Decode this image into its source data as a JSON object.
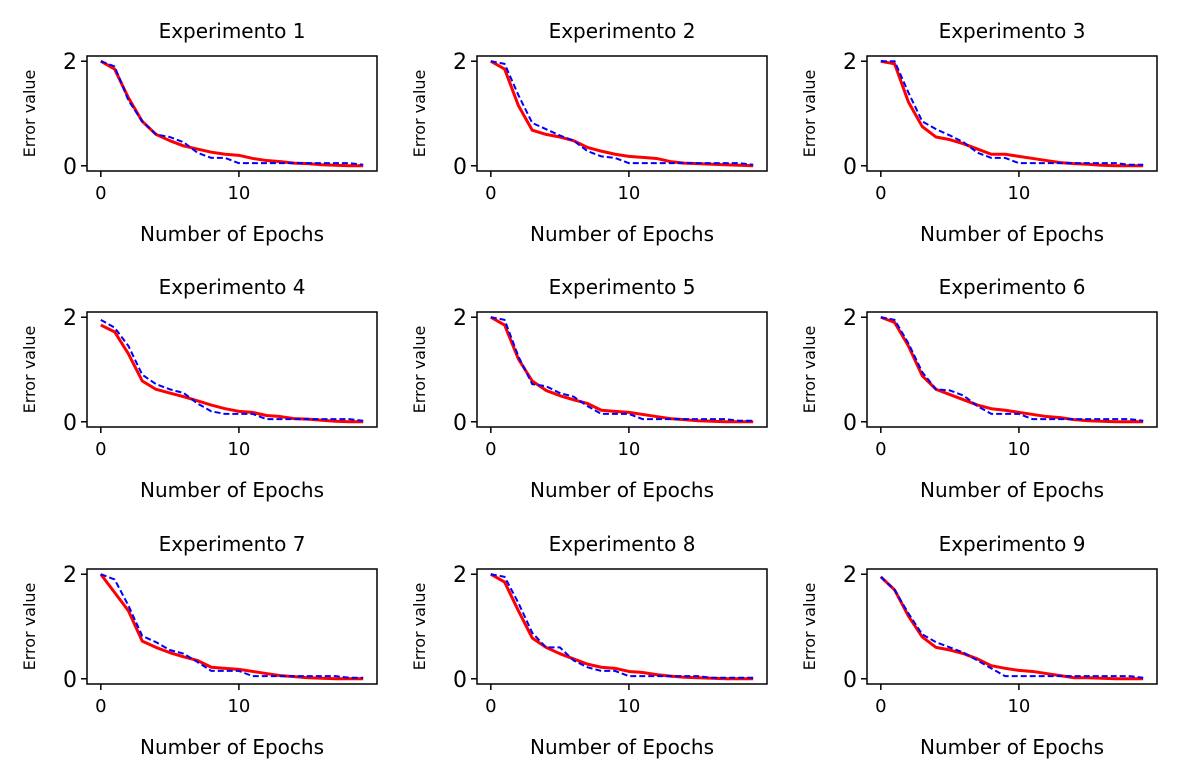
{
  "chart_data": [
    {
      "type": "line",
      "title": "Experimento 1",
      "xlabel": "Number of Epochs",
      "ylabel": "Error value",
      "xlim": [
        -1.0,
        20.0
      ],
      "ylim": [
        -0.1,
        2.1
      ],
      "xticks": [
        0,
        10
      ],
      "yticks": [
        0,
        2
      ],
      "series": [
        {
          "color": "#ff0000",
          "style": "solid",
          "x": [
            0,
            1,
            2,
            3,
            4,
            5,
            6,
            7,
            8,
            9,
            10,
            11,
            12,
            13,
            14,
            15,
            16,
            17,
            18,
            19
          ],
          "y": [
            2.0,
            1.85,
            1.3,
            0.85,
            0.6,
            0.48,
            0.38,
            0.32,
            0.26,
            0.22,
            0.2,
            0.14,
            0.1,
            0.08,
            0.05,
            0.04,
            0.02,
            0.01,
            0.0,
            0.0
          ]
        },
        {
          "color": "#0000ff",
          "style": "dashed",
          "x": [
            0,
            1,
            2,
            3,
            4,
            5,
            6,
            7,
            8,
            9,
            10,
            11,
            12,
            13,
            14,
            15,
            16,
            17,
            18,
            19
          ],
          "y": [
            2.0,
            1.9,
            1.25,
            0.85,
            0.6,
            0.55,
            0.45,
            0.25,
            0.15,
            0.15,
            0.05,
            0.05,
            0.05,
            0.05,
            0.05,
            0.05,
            0.05,
            0.05,
            0.05,
            0.02
          ]
        }
      ]
    },
    {
      "type": "line",
      "title": "Experimento 2",
      "xlabel": "Number of Epochs",
      "ylabel": "Error value",
      "xlim": [
        -1.0,
        20.0
      ],
      "ylim": [
        -0.1,
        2.1
      ],
      "xticks": [
        0,
        10
      ],
      "yticks": [
        0,
        2
      ],
      "series": [
        {
          "color": "#ff0000",
          "style": "solid",
          "x": [
            0,
            1,
            2,
            3,
            4,
            5,
            6,
            7,
            8,
            9,
            10,
            11,
            12,
            13,
            14,
            15,
            16,
            17,
            18,
            19
          ],
          "y": [
            2.0,
            1.85,
            1.15,
            0.68,
            0.6,
            0.55,
            0.48,
            0.35,
            0.28,
            0.22,
            0.18,
            0.16,
            0.14,
            0.08,
            0.05,
            0.04,
            0.03,
            0.02,
            0.01,
            0.0
          ]
        },
        {
          "color": "#0000ff",
          "style": "dashed",
          "x": [
            0,
            1,
            2,
            3,
            4,
            5,
            6,
            7,
            8,
            9,
            10,
            11,
            12,
            13,
            14,
            15,
            16,
            17,
            18,
            19
          ],
          "y": [
            2.0,
            1.95,
            1.35,
            0.82,
            0.7,
            0.58,
            0.48,
            0.28,
            0.18,
            0.15,
            0.05,
            0.05,
            0.05,
            0.05,
            0.05,
            0.05,
            0.05,
            0.05,
            0.05,
            0.02
          ]
        }
      ]
    },
    {
      "type": "line",
      "title": "Experimento 3",
      "xlabel": "Number of Epochs",
      "ylabel": "Error value",
      "xlim": [
        -1.0,
        20.0
      ],
      "ylim": [
        -0.1,
        2.1
      ],
      "xticks": [
        0,
        10
      ],
      "yticks": [
        0,
        2
      ],
      "series": [
        {
          "color": "#ff0000",
          "style": "solid",
          "x": [
            0,
            1,
            2,
            3,
            4,
            5,
            6,
            7,
            8,
            9,
            10,
            11,
            12,
            13,
            14,
            15,
            16,
            17,
            18,
            19
          ],
          "y": [
            2.0,
            1.95,
            1.22,
            0.75,
            0.55,
            0.5,
            0.42,
            0.32,
            0.22,
            0.22,
            0.18,
            0.14,
            0.1,
            0.06,
            0.04,
            0.03,
            0.01,
            0.0,
            0.0,
            0.0
          ]
        },
        {
          "color": "#0000ff",
          "style": "dashed",
          "x": [
            0,
            1,
            2,
            3,
            4,
            5,
            6,
            7,
            8,
            9,
            10,
            11,
            12,
            13,
            14,
            15,
            16,
            17,
            18,
            19
          ],
          "y": [
            2.0,
            2.0,
            1.4,
            0.85,
            0.7,
            0.58,
            0.45,
            0.25,
            0.15,
            0.15,
            0.05,
            0.05,
            0.05,
            0.05,
            0.05,
            0.05,
            0.05,
            0.05,
            0.02,
            0.02
          ]
        }
      ]
    },
    {
      "type": "line",
      "title": "Experimento 4",
      "xlabel": "Number of Epochs",
      "ylabel": "Error value",
      "xlim": [
        -1.0,
        20.0
      ],
      "ylim": [
        -0.1,
        2.1
      ],
      "xticks": [
        0,
        10
      ],
      "yticks": [
        0,
        2
      ],
      "series": [
        {
          "color": "#ff0000",
          "style": "solid",
          "x": [
            0,
            1,
            2,
            3,
            4,
            5,
            6,
            7,
            8,
            9,
            10,
            11,
            12,
            13,
            14,
            15,
            16,
            17,
            18,
            19
          ],
          "y": [
            1.85,
            1.72,
            1.3,
            0.78,
            0.62,
            0.55,
            0.48,
            0.4,
            0.32,
            0.25,
            0.2,
            0.18,
            0.12,
            0.1,
            0.06,
            0.05,
            0.03,
            0.01,
            0.0,
            0.0
          ]
        },
        {
          "color": "#0000ff",
          "style": "dashed",
          "x": [
            0,
            1,
            2,
            3,
            4,
            5,
            6,
            7,
            8,
            9,
            10,
            11,
            12,
            13,
            14,
            15,
            16,
            17,
            18,
            19
          ],
          "y": [
            1.95,
            1.8,
            1.45,
            0.9,
            0.72,
            0.62,
            0.55,
            0.35,
            0.2,
            0.15,
            0.15,
            0.15,
            0.05,
            0.05,
            0.05,
            0.05,
            0.05,
            0.05,
            0.05,
            0.02
          ]
        }
      ]
    },
    {
      "type": "line",
      "title": "Experimento 5",
      "xlabel": "Number of Epochs",
      "ylabel": "Error value",
      "xlim": [
        -1.0,
        20.0
      ],
      "ylim": [
        -0.1,
        2.1
      ],
      "xticks": [
        0,
        10
      ],
      "yticks": [
        0,
        2
      ],
      "series": [
        {
          "color": "#ff0000",
          "style": "solid",
          "x": [
            0,
            1,
            2,
            3,
            4,
            5,
            6,
            7,
            8,
            9,
            10,
            11,
            12,
            13,
            14,
            15,
            16,
            17,
            18,
            19
          ],
          "y": [
            2.0,
            1.85,
            1.2,
            0.78,
            0.6,
            0.5,
            0.42,
            0.35,
            0.22,
            0.2,
            0.18,
            0.14,
            0.1,
            0.06,
            0.04,
            0.02,
            0.01,
            0.0,
            0.0,
            0.0
          ]
        },
        {
          "color": "#0000ff",
          "style": "dashed",
          "x": [
            0,
            1,
            2,
            3,
            4,
            5,
            6,
            7,
            8,
            9,
            10,
            11,
            12,
            13,
            14,
            15,
            16,
            17,
            18,
            19
          ],
          "y": [
            2.0,
            1.95,
            1.25,
            0.72,
            0.68,
            0.55,
            0.48,
            0.3,
            0.15,
            0.15,
            0.15,
            0.05,
            0.05,
            0.05,
            0.05,
            0.05,
            0.05,
            0.05,
            0.02,
            0.02
          ]
        }
      ]
    },
    {
      "type": "line",
      "title": "Experimento 6",
      "xlabel": "Number of Epochs",
      "ylabel": "Error value",
      "xlim": [
        -1.0,
        20.0
      ],
      "ylim": [
        -0.1,
        2.1
      ],
      "xticks": [
        0,
        10
      ],
      "yticks": [
        0,
        2
      ],
      "series": [
        {
          "color": "#ff0000",
          "style": "solid",
          "x": [
            0,
            1,
            2,
            3,
            4,
            5,
            6,
            7,
            8,
            9,
            10,
            11,
            12,
            13,
            14,
            15,
            16,
            17,
            18,
            19
          ],
          "y": [
            2.0,
            1.9,
            1.45,
            0.88,
            0.62,
            0.52,
            0.42,
            0.32,
            0.25,
            0.22,
            0.18,
            0.14,
            0.1,
            0.08,
            0.04,
            0.02,
            0.01,
            0.0,
            0.0,
            0.0
          ]
        },
        {
          "color": "#0000ff",
          "style": "dashed",
          "x": [
            0,
            1,
            2,
            3,
            4,
            5,
            6,
            7,
            8,
            9,
            10,
            11,
            12,
            13,
            14,
            15,
            16,
            17,
            18,
            19
          ],
          "y": [
            2.0,
            1.95,
            1.5,
            0.95,
            0.62,
            0.6,
            0.5,
            0.3,
            0.15,
            0.15,
            0.15,
            0.05,
            0.05,
            0.05,
            0.05,
            0.05,
            0.05,
            0.05,
            0.05,
            0.02
          ]
        }
      ]
    },
    {
      "type": "line",
      "title": "Experimento 7",
      "xlabel": "Number of Epochs",
      "ylabel": "Error value",
      "xlim": [
        -1.0,
        20.0
      ],
      "ylim": [
        -0.1,
        2.1
      ],
      "xticks": [
        0,
        10
      ],
      "yticks": [
        0,
        2
      ],
      "series": [
        {
          "color": "#ff0000",
          "style": "solid",
          "x": [
            0,
            1,
            2,
            3,
            4,
            5,
            6,
            7,
            8,
            9,
            10,
            11,
            12,
            13,
            14,
            15,
            16,
            17,
            18,
            19
          ],
          "y": [
            2.0,
            1.65,
            1.3,
            0.72,
            0.6,
            0.5,
            0.42,
            0.35,
            0.22,
            0.2,
            0.18,
            0.14,
            0.1,
            0.06,
            0.04,
            0.02,
            0.01,
            0.0,
            0.0,
            0.0
          ]
        },
        {
          "color": "#0000ff",
          "style": "dashed",
          "x": [
            0,
            1,
            2,
            3,
            4,
            5,
            6,
            7,
            8,
            9,
            10,
            11,
            12,
            13,
            14,
            15,
            16,
            17,
            18,
            19
          ],
          "y": [
            2.0,
            1.9,
            1.4,
            0.82,
            0.7,
            0.55,
            0.48,
            0.32,
            0.15,
            0.15,
            0.15,
            0.05,
            0.05,
            0.05,
            0.05,
            0.05,
            0.05,
            0.05,
            0.02,
            0.02
          ]
        }
      ]
    },
    {
      "type": "line",
      "title": "Experimento 8",
      "xlabel": "Number of Epochs",
      "ylabel": "Error value",
      "xlim": [
        -1.0,
        20.0
      ],
      "ylim": [
        -0.1,
        2.1
      ],
      "xticks": [
        0,
        10
      ],
      "yticks": [
        0,
        2
      ],
      "series": [
        {
          "color": "#ff0000",
          "style": "solid",
          "x": [
            0,
            1,
            2,
            3,
            4,
            5,
            6,
            7,
            8,
            9,
            10,
            11,
            12,
            13,
            14,
            15,
            16,
            17,
            18,
            19
          ],
          "y": [
            2.0,
            1.85,
            1.3,
            0.78,
            0.6,
            0.48,
            0.38,
            0.28,
            0.22,
            0.2,
            0.14,
            0.12,
            0.08,
            0.05,
            0.03,
            0.02,
            0.01,
            0.0,
            0.0,
            0.0
          ]
        },
        {
          "color": "#0000ff",
          "style": "dashed",
          "x": [
            0,
            1,
            2,
            3,
            4,
            5,
            6,
            7,
            8,
            9,
            10,
            11,
            12,
            13,
            14,
            15,
            16,
            17,
            18,
            19
          ],
          "y": [
            2.0,
            1.95,
            1.45,
            0.88,
            0.6,
            0.6,
            0.35,
            0.22,
            0.15,
            0.15,
            0.05,
            0.05,
            0.05,
            0.05,
            0.05,
            0.05,
            0.02,
            0.02,
            0.02,
            0.02
          ]
        }
      ]
    },
    {
      "type": "line",
      "title": "Experimento 9",
      "xlabel": "Number of Epochs",
      "ylabel": "Error value",
      "xlim": [
        -1.0,
        20.0
      ],
      "ylim": [
        -0.1,
        2.1
      ],
      "xticks": [
        0,
        10
      ],
      "yticks": [
        0,
        2
      ],
      "series": [
        {
          "color": "#ff0000",
          "style": "solid",
          "x": [
            0,
            1,
            2,
            3,
            4,
            5,
            6,
            7,
            8,
            9,
            10,
            11,
            12,
            13,
            14,
            15,
            16,
            17,
            18,
            19
          ],
          "y": [
            1.95,
            1.7,
            1.2,
            0.8,
            0.6,
            0.55,
            0.48,
            0.38,
            0.25,
            0.2,
            0.16,
            0.14,
            0.1,
            0.06,
            0.02,
            0.02,
            0.01,
            0.0,
            0.0,
            0.0
          ]
        },
        {
          "color": "#0000ff",
          "style": "dashed",
          "x": [
            0,
            1,
            2,
            3,
            4,
            5,
            6,
            7,
            8,
            9,
            10,
            11,
            12,
            13,
            14,
            15,
            16,
            17,
            18,
            19
          ],
          "y": [
            1.95,
            1.7,
            1.25,
            0.85,
            0.7,
            0.6,
            0.5,
            0.35,
            0.2,
            0.05,
            0.05,
            0.05,
            0.05,
            0.05,
            0.05,
            0.05,
            0.05,
            0.05,
            0.05,
            0.02
          ]
        }
      ]
    }
  ]
}
